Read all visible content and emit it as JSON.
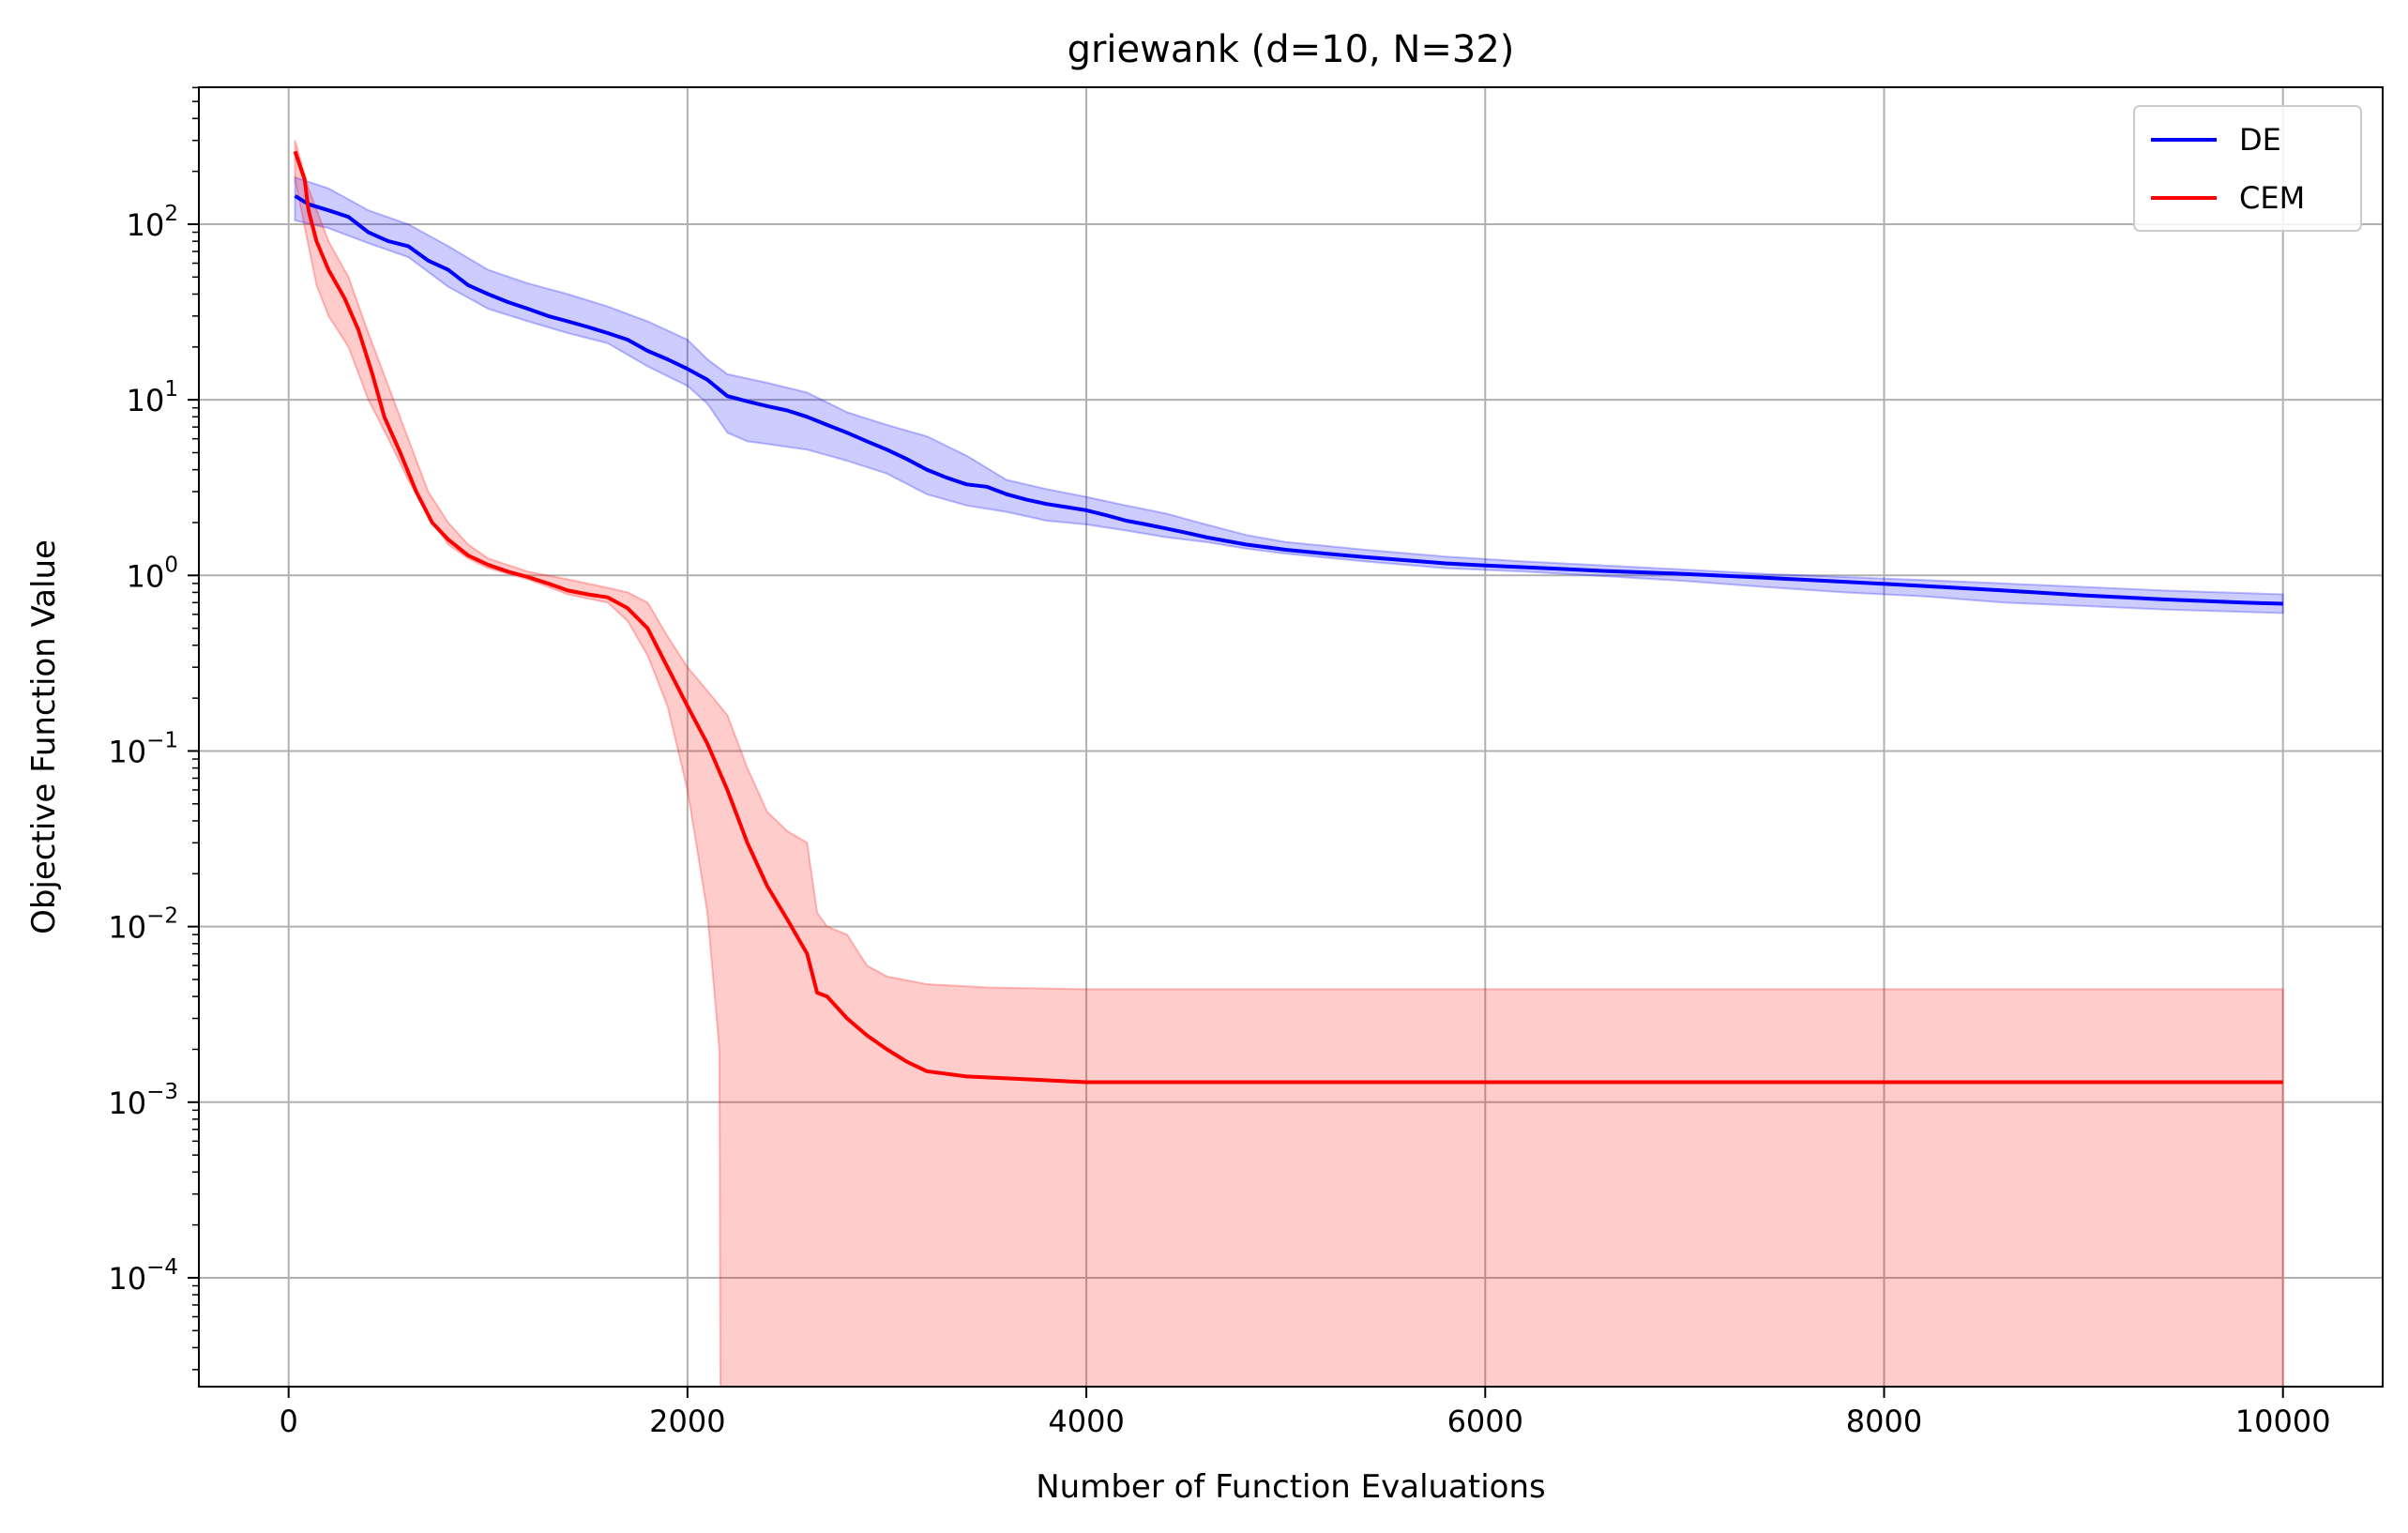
{
  "chart_data": {
    "type": "line",
    "title": "griewank (d=10, N=32)",
    "xlabel": "Number of Function Evaluations",
    "ylabel": "Objective Function Value",
    "xlim": [
      -450,
      10500
    ],
    "ylim_log10": [
      -4.62,
      2.78
    ],
    "yscale": "log",
    "grid": true,
    "legend_position": "top-right",
    "x_ticks": [
      {
        "value": 0,
        "label": "0"
      },
      {
        "value": 2000,
        "label": "2000"
      },
      {
        "value": 4000,
        "label": "4000"
      },
      {
        "value": 6000,
        "label": "6000"
      },
      {
        "value": 8000,
        "label": "8000"
      },
      {
        "value": 10000,
        "label": "10000"
      }
    ],
    "y_ticks": [
      {
        "exp": 2,
        "base": "10",
        "sup": "2"
      },
      {
        "exp": 1,
        "base": "10",
        "sup": "1"
      },
      {
        "exp": 0,
        "base": "10",
        "sup": "0"
      },
      {
        "exp": -1,
        "base": "10",
        "sup": "−1"
      },
      {
        "exp": -2,
        "base": "10",
        "sup": "−2"
      },
      {
        "exp": -3,
        "base": "10",
        "sup": "−3"
      },
      {
        "exp": -4,
        "base": "10",
        "sup": "−4"
      }
    ],
    "series": [
      {
        "name": "DE",
        "color": "#0000ff",
        "band_color": "#0000ff",
        "points": [
          [
            32,
            145
          ],
          [
            100,
            130
          ],
          [
            200,
            120
          ],
          [
            300,
            110
          ],
          [
            400,
            90
          ],
          [
            500,
            80
          ],
          [
            600,
            75
          ],
          [
            700,
            62
          ],
          [
            800,
            55
          ],
          [
            900,
            45
          ],
          [
            1000,
            40
          ],
          [
            1100,
            36
          ],
          [
            1200,
            33
          ],
          [
            1300,
            30
          ],
          [
            1400,
            28
          ],
          [
            1500,
            26
          ],
          [
            1600,
            24
          ],
          [
            1700,
            22
          ],
          [
            1800,
            19
          ],
          [
            1900,
            17
          ],
          [
            2000,
            15
          ],
          [
            2100,
            13
          ],
          [
            2200,
            10.5
          ],
          [
            2300,
            9.8
          ],
          [
            2400,
            9.2
          ],
          [
            2500,
            8.7
          ],
          [
            2600,
            8.0
          ],
          [
            2700,
            7.2
          ],
          [
            2800,
            6.5
          ],
          [
            2900,
            5.8
          ],
          [
            3000,
            5.2
          ],
          [
            3100,
            4.6
          ],
          [
            3200,
            4.0
          ],
          [
            3300,
            3.6
          ],
          [
            3400,
            3.3
          ],
          [
            3500,
            3.2
          ],
          [
            3600,
            2.9
          ],
          [
            3700,
            2.7
          ],
          [
            3800,
            2.55
          ],
          [
            3900,
            2.45
          ],
          [
            4000,
            2.35
          ],
          [
            4100,
            2.2
          ],
          [
            4200,
            2.05
          ],
          [
            4300,
            1.95
          ],
          [
            4400,
            1.85
          ],
          [
            4500,
            1.75
          ],
          [
            4600,
            1.65
          ],
          [
            4800,
            1.5
          ],
          [
            5000,
            1.4
          ],
          [
            5200,
            1.33
          ],
          [
            5400,
            1.27
          ],
          [
            5600,
            1.22
          ],
          [
            5800,
            1.17
          ],
          [
            6000,
            1.14
          ],
          [
            6300,
            1.1
          ],
          [
            6600,
            1.06
          ],
          [
            7000,
            1.02
          ],
          [
            7400,
            0.97
          ],
          [
            7800,
            0.92
          ],
          [
            8200,
            0.87
          ],
          [
            8600,
            0.82
          ],
          [
            9000,
            0.77
          ],
          [
            9400,
            0.73
          ],
          [
            9800,
            0.7
          ],
          [
            10000,
            0.69
          ]
        ],
        "band_lower": [
          [
            32,
            105
          ],
          [
            200,
            95
          ],
          [
            400,
            78
          ],
          [
            600,
            65
          ],
          [
            800,
            44
          ],
          [
            1000,
            33
          ],
          [
            1200,
            28
          ],
          [
            1400,
            24
          ],
          [
            1600,
            21
          ],
          [
            1800,
            15.5
          ],
          [
            2000,
            12
          ],
          [
            2100,
            9.5
          ],
          [
            2200,
            6.5
          ],
          [
            2300,
            5.8
          ],
          [
            2400,
            5.6
          ],
          [
            2600,
            5.2
          ],
          [
            2800,
            4.5
          ],
          [
            3000,
            3.8
          ],
          [
            3200,
            2.9
          ],
          [
            3400,
            2.5
          ],
          [
            3600,
            2.3
          ],
          [
            3800,
            2.05
          ],
          [
            4000,
            1.95
          ],
          [
            4200,
            1.8
          ],
          [
            4400,
            1.65
          ],
          [
            4600,
            1.55
          ],
          [
            4800,
            1.42
          ],
          [
            5000,
            1.33
          ],
          [
            5400,
            1.2
          ],
          [
            5800,
            1.1
          ],
          [
            6200,
            1.05
          ],
          [
            6600,
            0.99
          ],
          [
            7000,
            0.93
          ],
          [
            7400,
            0.86
          ],
          [
            7800,
            0.8
          ],
          [
            8200,
            0.76
          ],
          [
            8600,
            0.7
          ],
          [
            9000,
            0.67
          ],
          [
            9400,
            0.64
          ],
          [
            10000,
            0.61
          ]
        ],
        "band_upper": [
          [
            32,
            185
          ],
          [
            200,
            160
          ],
          [
            400,
            120
          ],
          [
            600,
            100
          ],
          [
            800,
            75
          ],
          [
            1000,
            55
          ],
          [
            1200,
            46
          ],
          [
            1400,
            40
          ],
          [
            1600,
            34
          ],
          [
            1800,
            28
          ],
          [
            2000,
            22
          ],
          [
            2100,
            17
          ],
          [
            2200,
            14
          ],
          [
            2400,
            12.5
          ],
          [
            2600,
            11
          ],
          [
            2800,
            8.5
          ],
          [
            3000,
            7.2
          ],
          [
            3200,
            6.2
          ],
          [
            3400,
            4.8
          ],
          [
            3600,
            3.5
          ],
          [
            3800,
            3.1
          ],
          [
            4000,
            2.8
          ],
          [
            4200,
            2.5
          ],
          [
            4400,
            2.25
          ],
          [
            4600,
            1.95
          ],
          [
            4800,
            1.7
          ],
          [
            5000,
            1.55
          ],
          [
            5400,
            1.4
          ],
          [
            5800,
            1.28
          ],
          [
            6200,
            1.2
          ],
          [
            6600,
            1.14
          ],
          [
            7000,
            1.08
          ],
          [
            7400,
            1.02
          ],
          [
            7800,
            0.98
          ],
          [
            8200,
            0.94
          ],
          [
            8600,
            0.9
          ],
          [
            9000,
            0.86
          ],
          [
            9400,
            0.82
          ],
          [
            10000,
            0.78
          ]
        ]
      },
      {
        "name": "CEM",
        "color": "#ff0000",
        "band_color": "#ff0000",
        "points": [
          [
            32,
            260
          ],
          [
            80,
            180
          ],
          [
            100,
            120
          ],
          [
            140,
            80
          ],
          [
            200,
            55
          ],
          [
            280,
            38
          ],
          [
            350,
            25
          ],
          [
            420,
            14
          ],
          [
            480,
            8
          ],
          [
            560,
            5
          ],
          [
            640,
            3
          ],
          [
            720,
            2
          ],
          [
            800,
            1.6
          ],
          [
            900,
            1.3
          ],
          [
            1000,
            1.15
          ],
          [
            1100,
            1.05
          ],
          [
            1200,
            0.98
          ],
          [
            1300,
            0.9
          ],
          [
            1400,
            0.82
          ],
          [
            1500,
            0.78
          ],
          [
            1600,
            0.75
          ],
          [
            1700,
            0.65
          ],
          [
            1800,
            0.5
          ],
          [
            1900,
            0.3
          ],
          [
            2000,
            0.18
          ],
          [
            2100,
            0.11
          ],
          [
            2200,
            0.06
          ],
          [
            2300,
            0.03
          ],
          [
            2400,
            0.017
          ],
          [
            2500,
            0.011
          ],
          [
            2600,
            0.007
          ],
          [
            2650,
            0.0042
          ],
          [
            2700,
            0.004
          ],
          [
            2800,
            0.003
          ],
          [
            2900,
            0.0024
          ],
          [
            3000,
            0.002
          ],
          [
            3100,
            0.0017
          ],
          [
            3200,
            0.0015
          ],
          [
            3400,
            0.0014
          ],
          [
            3700,
            0.00135
          ],
          [
            4000,
            0.0013
          ],
          [
            5000,
            0.0013
          ],
          [
            7000,
            0.0013
          ],
          [
            10000,
            0.0013
          ]
        ],
        "band_lower": [
          [
            32,
            180
          ],
          [
            140,
            45
          ],
          [
            200,
            30
          ],
          [
            300,
            20
          ],
          [
            400,
            10
          ],
          [
            500,
            6
          ],
          [
            600,
            3.5
          ],
          [
            700,
            2.2
          ],
          [
            800,
            1.5
          ],
          [
            900,
            1.25
          ],
          [
            1000,
            1.1
          ],
          [
            1200,
            0.95
          ],
          [
            1400,
            0.78
          ],
          [
            1600,
            0.7
          ],
          [
            1700,
            0.55
          ],
          [
            1800,
            0.35
          ],
          [
            1900,
            0.18
          ],
          [
            2000,
            0.06
          ],
          [
            2100,
            0.012
          ],
          [
            2160,
            0.002
          ],
          [
            2165,
            1e-05
          ],
          [
            10000,
            1e-05
          ]
        ],
        "band_upper": [
          [
            32,
            300
          ],
          [
            100,
            160
          ],
          [
            200,
            80
          ],
          [
            300,
            50
          ],
          [
            400,
            24
          ],
          [
            500,
            12
          ],
          [
            600,
            6
          ],
          [
            700,
            3
          ],
          [
            800,
            2
          ],
          [
            900,
            1.5
          ],
          [
            1000,
            1.25
          ],
          [
            1200,
            1.05
          ],
          [
            1400,
            0.95
          ],
          [
            1600,
            0.85
          ],
          [
            1700,
            0.8
          ],
          [
            1800,
            0.7
          ],
          [
            1900,
            0.45
          ],
          [
            2000,
            0.3
          ],
          [
            2100,
            0.22
          ],
          [
            2200,
            0.16
          ],
          [
            2300,
            0.08
          ],
          [
            2400,
            0.045
          ],
          [
            2500,
            0.035
          ],
          [
            2600,
            0.03
          ],
          [
            2650,
            0.012
          ],
          [
            2700,
            0.01
          ],
          [
            2800,
            0.009
          ],
          [
            2900,
            0.006
          ],
          [
            3000,
            0.0052
          ],
          [
            3200,
            0.0047
          ],
          [
            3500,
            0.0045
          ],
          [
            4000,
            0.0044
          ],
          [
            5000,
            0.0044
          ],
          [
            7000,
            0.0044
          ],
          [
            10000,
            0.0044
          ]
        ]
      }
    ]
  }
}
